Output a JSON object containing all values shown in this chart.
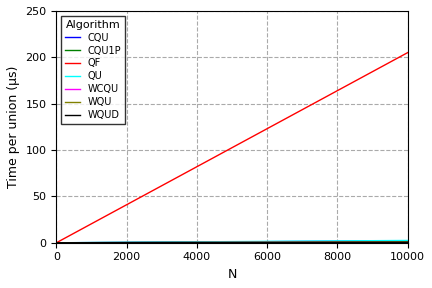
{
  "title": "",
  "xlabel": "N",
  "ylabel": "Time per union (μs)",
  "xlim": [
    0,
    10000
  ],
  "ylim": [
    0,
    250
  ],
  "xticks": [
    0,
    2000,
    4000,
    6000,
    8000,
    10000
  ],
  "yticks": [
    0,
    50,
    100,
    150,
    200,
    250
  ],
  "algorithms": [
    {
      "label": "CQU",
      "color": "blue",
      "slope": 0.0002,
      "intercept": 0.0
    },
    {
      "label": "CQU1P",
      "color": "green",
      "slope": 0.00015,
      "intercept": 0.0
    },
    {
      "label": "QF",
      "color": "red",
      "slope": 0.0205,
      "intercept": 0.0
    },
    {
      "label": "QU",
      "color": "cyan",
      "slope": 0.00025,
      "intercept": 0.0
    },
    {
      "label": "WCQU",
      "color": "magenta",
      "slope": 8e-05,
      "intercept": 0.0
    },
    {
      "label": "WQU",
      "color": "olive",
      "slope": 0.0001,
      "intercept": 0.0
    },
    {
      "label": "WQUD",
      "color": "black",
      "slope": 5e-05,
      "intercept": 0.0
    }
  ],
  "legend_title": "Algorithm",
  "legend_loc": "upper left",
  "grid": true,
  "grid_linestyle": "--",
  "grid_color": "#aaaaaa",
  "background_color": "#ffffff",
  "N_points": 10001,
  "tick_fontsize": 8,
  "label_fontsize": 9,
  "legend_fontsize": 7,
  "legend_title_fontsize": 8
}
